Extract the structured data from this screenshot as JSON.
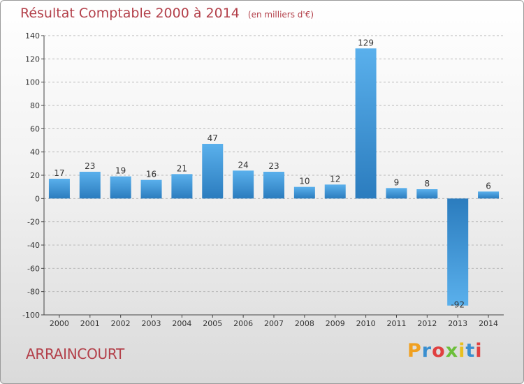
{
  "header": {
    "title": "Résultat Comptable 2000 à 2014",
    "unit": "(en milliers d'€)"
  },
  "footer": {
    "commune": "ARRAINCOURT",
    "logo_text": "Proxiti",
    "logo_colors": [
      "#f0a020",
      "#3a8fd0",
      "#e04040",
      "#6cbf3a",
      "#e8c020",
      "#3a8fd0",
      "#e04040"
    ]
  },
  "colors": {
    "title": "#b3404a",
    "bar_light": "#5ab0ec",
    "bar_dark": "#2b7cbe",
    "axis": "#444444",
    "grid": "#b8b8b8"
  },
  "chart_data": {
    "type": "bar",
    "categories": [
      "2000",
      "2001",
      "2002",
      "2003",
      "2004",
      "2005",
      "2006",
      "2007",
      "2008",
      "2009",
      "2010",
      "2011",
      "2012",
      "2013",
      "2014"
    ],
    "values": [
      17,
      23,
      19,
      16,
      21,
      47,
      24,
      23,
      10,
      12,
      129,
      9,
      8,
      -92,
      6
    ],
    "data_labels": [
      "17",
      "23",
      "19",
      "16",
      "21",
      "47",
      "24",
      "23",
      "10",
      "12",
      "129",
      "9",
      "8",
      "-92",
      "6"
    ],
    "yticks": [
      140,
      120,
      100,
      80,
      60,
      40,
      20,
      0,
      -20,
      -40,
      -60,
      -80,
      -100
    ],
    "ylim": [
      -100,
      140
    ],
    "grid": "horizontal dashed",
    "legend": "none"
  }
}
